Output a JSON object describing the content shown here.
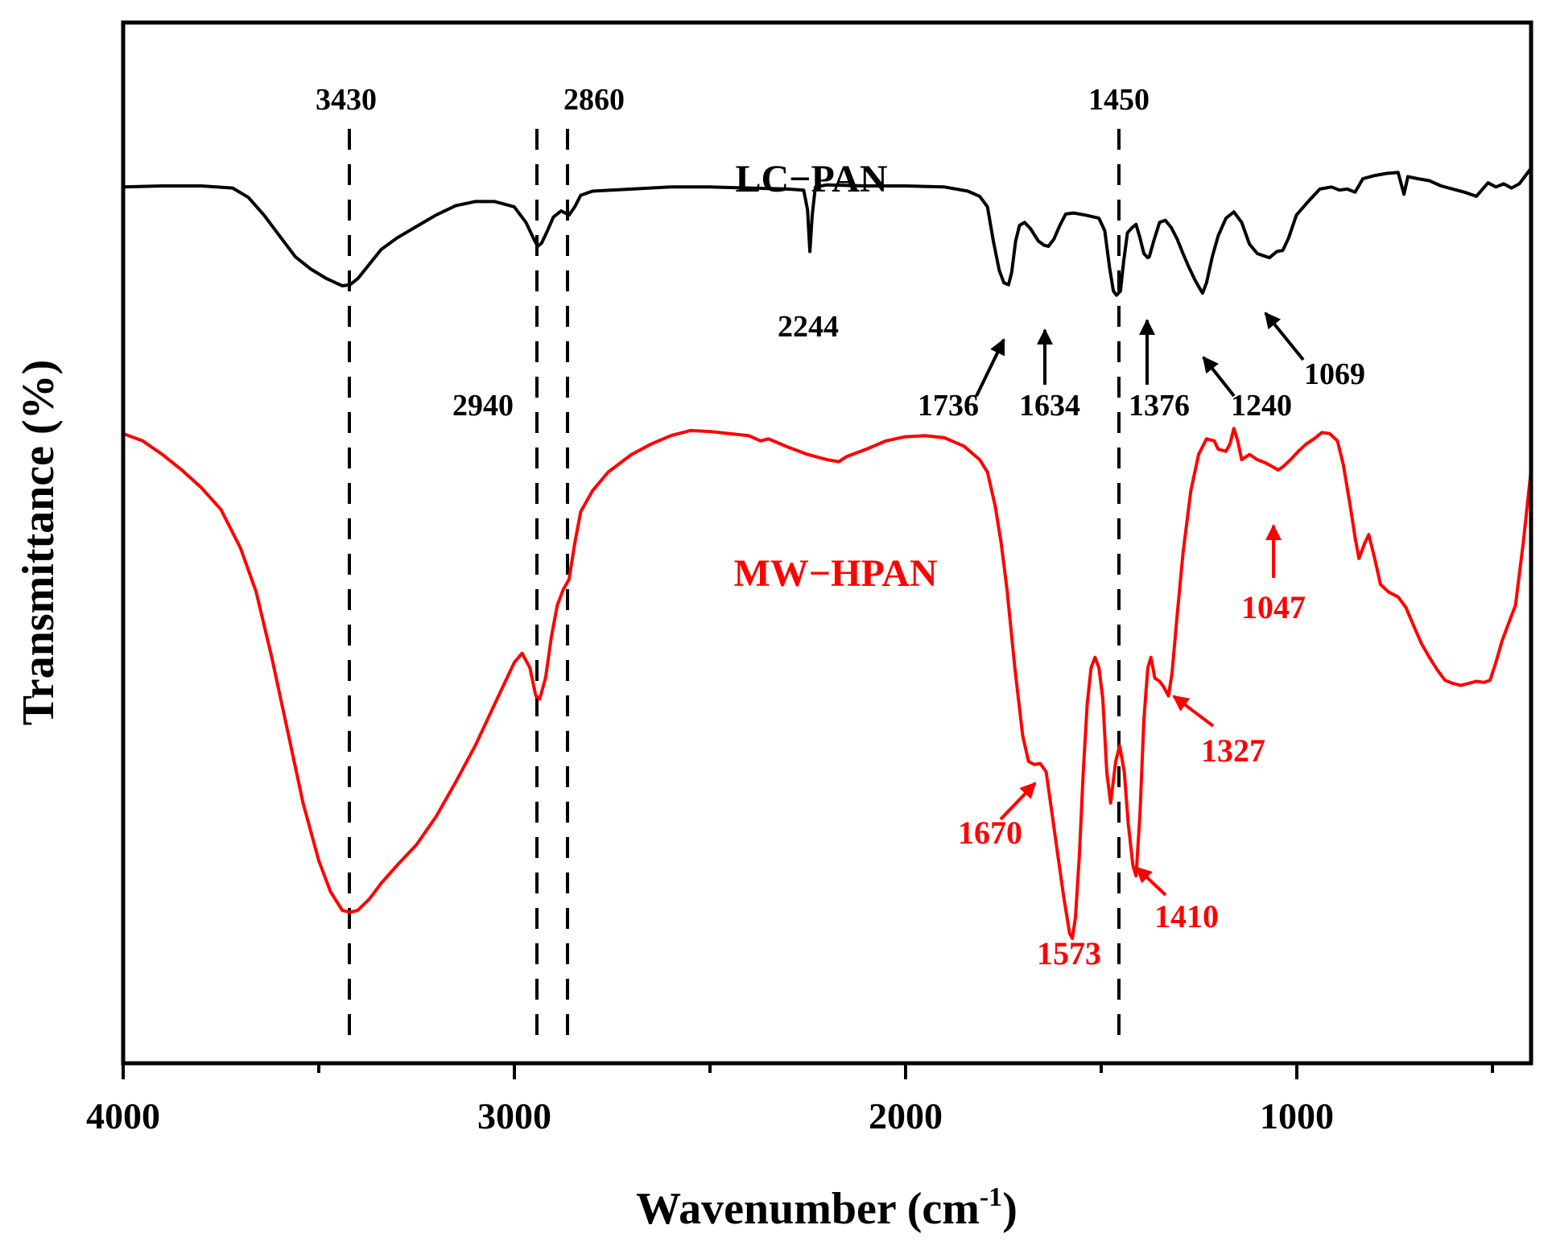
{
  "chart_data": {
    "type": "line",
    "title": "",
    "xlabel": "Wavenumber (cm",
    "xlabel_sup": "-1",
    "xlabel_close": ")",
    "ylabel": "Transmittance (%)",
    "xlim": [
      4000,
      400
    ],
    "ylim": [
      0,
      100
    ],
    "xticks": [
      4000,
      3000,
      2000,
      1000
    ],
    "xticks_minor": [
      3500,
      2500,
      1500,
      500
    ],
    "colors": {
      "axis": "#000000",
      "lc": "#000000",
      "mw": "#ff0000"
    },
    "reference_lines": [
      {
        "x": 3430,
        "label": "3430"
      },
      {
        "x": 2940,
        "label": ""
      },
      {
        "x": 2860,
        "label": "2860"
      },
      {
        "x": 1450,
        "label": "1450"
      }
    ],
    "series": [
      {
        "name": "LC−PAN",
        "color": "#000000",
        "points": [
          [
            4000,
            84.2
          ],
          [
            3900,
            84.3
          ],
          [
            3800,
            84.3
          ],
          [
            3720,
            84.1
          ],
          [
            3680,
            83.2
          ],
          [
            3640,
            81.5
          ],
          [
            3600,
            79.5
          ],
          [
            3560,
            77.5
          ],
          [
            3520,
            76.3
          ],
          [
            3480,
            75.4
          ],
          [
            3440,
            74.7
          ],
          [
            3420,
            74.8
          ],
          [
            3400,
            75.4
          ],
          [
            3370,
            76.8
          ],
          [
            3340,
            78.2
          ],
          [
            3300,
            79.3
          ],
          [
            3250,
            80.4
          ],
          [
            3200,
            81.5
          ],
          [
            3150,
            82.4
          ],
          [
            3100,
            82.8
          ],
          [
            3050,
            82.8
          ],
          [
            3000,
            82.3
          ],
          [
            2970,
            80.8
          ],
          [
            2950,
            79.2
          ],
          [
            2940,
            78.5
          ],
          [
            2930,
            78.8
          ],
          [
            2915,
            80.0
          ],
          [
            2900,
            81.3
          ],
          [
            2880,
            81.9
          ],
          [
            2860,
            81.5
          ],
          [
            2845,
            82.3
          ],
          [
            2830,
            83.4
          ],
          [
            2800,
            83.8
          ],
          [
            2700,
            84.0
          ],
          [
            2600,
            84.2
          ],
          [
            2500,
            84.2
          ],
          [
            2400,
            84.1
          ],
          [
            2300,
            84.0
          ],
          [
            2260,
            83.9
          ],
          [
            2250,
            82.0
          ],
          [
            2244,
            78.0
          ],
          [
            2238,
            81.5
          ],
          [
            2230,
            84.2
          ],
          [
            2200,
            84.4
          ],
          [
            2100,
            84.3
          ],
          [
            2000,
            84.3
          ],
          [
            1900,
            84.2
          ],
          [
            1840,
            83.8
          ],
          [
            1810,
            83.3
          ],
          [
            1790,
            82.3
          ],
          [
            1775,
            79.0
          ],
          [
            1760,
            76.2
          ],
          [
            1748,
            75.0
          ],
          [
            1736,
            74.8
          ],
          [
            1728,
            76.0
          ],
          [
            1718,
            79.0
          ],
          [
            1708,
            80.5
          ],
          [
            1695,
            80.8
          ],
          [
            1680,
            80.2
          ],
          [
            1660,
            79.0
          ],
          [
            1645,
            78.6
          ],
          [
            1634,
            78.5
          ],
          [
            1620,
            79.2
          ],
          [
            1605,
            80.5
          ],
          [
            1590,
            81.6
          ],
          [
            1570,
            81.7
          ],
          [
            1540,
            81.5
          ],
          [
            1505,
            81.2
          ],
          [
            1490,
            80.0
          ],
          [
            1478,
            76.5
          ],
          [
            1468,
            74.2
          ],
          [
            1460,
            73.8
          ],
          [
            1450,
            74.2
          ],
          [
            1442,
            77.0
          ],
          [
            1432,
            79.8
          ],
          [
            1420,
            80.3
          ],
          [
            1410,
            80.6
          ],
          [
            1400,
            79.3
          ],
          [
            1390,
            77.8
          ],
          [
            1380,
            77.4
          ],
          [
            1376,
            77.5
          ],
          [
            1365,
            79.0
          ],
          [
            1350,
            80.8
          ],
          [
            1335,
            81.0
          ],
          [
            1320,
            80.3
          ],
          [
            1305,
            79.2
          ],
          [
            1290,
            77.8
          ],
          [
            1275,
            76.5
          ],
          [
            1260,
            75.3
          ],
          [
            1248,
            74.5
          ],
          [
            1240,
            74.0
          ],
          [
            1230,
            75.0
          ],
          [
            1215,
            77.5
          ],
          [
            1200,
            79.5
          ],
          [
            1180,
            81.2
          ],
          [
            1160,
            81.8
          ],
          [
            1140,
            80.8
          ],
          [
            1120,
            78.7
          ],
          [
            1100,
            77.8
          ],
          [
            1085,
            77.6
          ],
          [
            1069,
            77.4
          ],
          [
            1050,
            78.0
          ],
          [
            1035,
            78.1
          ],
          [
            1020,
            79.3
          ],
          [
            1000,
            81.5
          ],
          [
            970,
            82.8
          ],
          [
            940,
            84.0
          ],
          [
            910,
            84.2
          ],
          [
            890,
            83.9
          ],
          [
            870,
            84.0
          ],
          [
            850,
            83.7
          ],
          [
            830,
            85.0
          ],
          [
            800,
            85.3
          ],
          [
            770,
            85.5
          ],
          [
            740,
            85.6
          ],
          [
            725,
            83.5
          ],
          [
            715,
            85.2
          ],
          [
            690,
            85.0
          ],
          [
            660,
            84.8
          ],
          [
            630,
            84.3
          ],
          [
            600,
            84.0
          ],
          [
            570,
            83.7
          ],
          [
            540,
            83.3
          ],
          [
            510,
            84.6
          ],
          [
            490,
            84.2
          ],
          [
            470,
            84.5
          ],
          [
            450,
            84.1
          ],
          [
            430,
            84.5
          ],
          [
            410,
            85.5
          ],
          [
            400,
            86.0
          ]
        ]
      },
      {
        "name": "MW−HPAN",
        "color": "#ff0000",
        "points": [
          [
            4000,
            60.5
          ],
          [
            3950,
            59.8
          ],
          [
            3900,
            58.5
          ],
          [
            3850,
            57.0
          ],
          [
            3800,
            55.3
          ],
          [
            3750,
            53.2
          ],
          [
            3700,
            49.5
          ],
          [
            3660,
            45.3
          ],
          [
            3620,
            39.0
          ],
          [
            3580,
            32.0
          ],
          [
            3540,
            25.0
          ],
          [
            3500,
            19.5
          ],
          [
            3470,
            16.5
          ],
          [
            3440,
            14.7
          ],
          [
            3420,
            14.5
          ],
          [
            3400,
            14.7
          ],
          [
            3370,
            15.8
          ],
          [
            3340,
            17.3
          ],
          [
            3300,
            19.0
          ],
          [
            3250,
            21.0
          ],
          [
            3200,
            23.7
          ],
          [
            3150,
            27.0
          ],
          [
            3100,
            30.5
          ],
          [
            3050,
            34.5
          ],
          [
            3000,
            38.5
          ],
          [
            2980,
            39.4
          ],
          [
            2960,
            38.0
          ],
          [
            2945,
            35.3
          ],
          [
            2935,
            35.0
          ],
          [
            2920,
            37.0
          ],
          [
            2905,
            41.0
          ],
          [
            2890,
            44.0
          ],
          [
            2875,
            45.5
          ],
          [
            2860,
            46.5
          ],
          [
            2845,
            50.0
          ],
          [
            2830,
            53.0
          ],
          [
            2800,
            55.0
          ],
          [
            2760,
            56.8
          ],
          [
            2700,
            58.5
          ],
          [
            2650,
            59.5
          ],
          [
            2600,
            60.3
          ],
          [
            2550,
            60.8
          ],
          [
            2500,
            60.7
          ],
          [
            2450,
            60.5
          ],
          [
            2400,
            60.3
          ],
          [
            2370,
            59.8
          ],
          [
            2350,
            60.0
          ],
          [
            2300,
            59.2
          ],
          [
            2250,
            58.5
          ],
          [
            2200,
            58.0
          ],
          [
            2170,
            57.8
          ],
          [
            2150,
            58.3
          ],
          [
            2100,
            59.0
          ],
          [
            2050,
            59.8
          ],
          [
            2000,
            60.2
          ],
          [
            1950,
            60.3
          ],
          [
            1900,
            60.1
          ],
          [
            1850,
            59.3
          ],
          [
            1810,
            58.0
          ],
          [
            1790,
            56.8
          ],
          [
            1770,
            53.5
          ],
          [
            1755,
            50.0
          ],
          [
            1740,
            45.5
          ],
          [
            1720,
            38.0
          ],
          [
            1700,
            31.5
          ],
          [
            1685,
            29.0
          ],
          [
            1670,
            28.7
          ],
          [
            1655,
            28.8
          ],
          [
            1640,
            28.0
          ],
          [
            1625,
            24.0
          ],
          [
            1610,
            20.0
          ],
          [
            1595,
            16.0
          ],
          [
            1580,
            12.5
          ],
          [
            1573,
            12.0
          ],
          [
            1565,
            14.0
          ],
          [
            1555,
            20.0
          ],
          [
            1545,
            28.0
          ],
          [
            1535,
            34.5
          ],
          [
            1525,
            38.0
          ],
          [
            1515,
            39.0
          ],
          [
            1505,
            38.0
          ],
          [
            1495,
            35.0
          ],
          [
            1485,
            28.0
          ],
          [
            1475,
            25.0
          ],
          [
            1462,
            29.0
          ],
          [
            1452,
            30.5
          ],
          [
            1440,
            28.0
          ],
          [
            1430,
            23.0
          ],
          [
            1418,
            19.0
          ],
          [
            1410,
            18.0
          ],
          [
            1400,
            24.0
          ],
          [
            1390,
            33.0
          ],
          [
            1380,
            38.0
          ],
          [
            1372,
            39.0
          ],
          [
            1362,
            37.0
          ],
          [
            1350,
            36.7
          ],
          [
            1340,
            36.2
          ],
          [
            1327,
            35.3
          ],
          [
            1318,
            37.5
          ],
          [
            1305,
            43.0
          ],
          [
            1290,
            49.0
          ],
          [
            1270,
            55.0
          ],
          [
            1250,
            58.5
          ],
          [
            1230,
            60.0
          ],
          [
            1210,
            59.8
          ],
          [
            1200,
            59.0
          ],
          [
            1180,
            58.8
          ],
          [
            1170,
            59.5
          ],
          [
            1160,
            61.0
          ],
          [
            1150,
            59.8
          ],
          [
            1140,
            58.0
          ],
          [
            1120,
            58.5
          ],
          [
            1100,
            58.0
          ],
          [
            1080,
            57.7
          ],
          [
            1060,
            57.3
          ],
          [
            1047,
            57.0
          ],
          [
            1035,
            57.3
          ],
          [
            1015,
            58.0
          ],
          [
            995,
            58.8
          ],
          [
            975,
            59.5
          ],
          [
            955,
            60.0
          ],
          [
            935,
            60.6
          ],
          [
            915,
            60.5
          ],
          [
            895,
            59.8
          ],
          [
            880,
            57.5
          ],
          [
            860,
            53.0
          ],
          [
            850,
            50.5
          ],
          [
            840,
            48.5
          ],
          [
            825,
            50.0
          ],
          [
            815,
            50.8
          ],
          [
            800,
            48.5
          ],
          [
            785,
            46.0
          ],
          [
            765,
            45.3
          ],
          [
            740,
            44.8
          ],
          [
            720,
            43.8
          ],
          [
            700,
            42.0
          ],
          [
            680,
            40.3
          ],
          [
            660,
            39.0
          ],
          [
            640,
            37.8
          ],
          [
            620,
            36.8
          ],
          [
            600,
            36.5
          ],
          [
            580,
            36.3
          ],
          [
            560,
            36.5
          ],
          [
            540,
            36.7
          ],
          [
            520,
            36.6
          ],
          [
            505,
            36.8
          ],
          [
            490,
            38.5
          ],
          [
            475,
            40.5
          ],
          [
            460,
            42.0
          ],
          [
            440,
            44.0
          ],
          [
            420,
            50.0
          ],
          [
            400,
            57.0
          ]
        ]
      }
    ],
    "annotations": [
      {
        "label": "2940",
        "series": 0,
        "type": "text"
      },
      {
        "label": "2244",
        "series": 0,
        "type": "text"
      },
      {
        "label": "1736",
        "series": 0,
        "type": "arrow"
      },
      {
        "label": "1634",
        "series": 0,
        "type": "arrow"
      },
      {
        "label": "1376",
        "series": 0,
        "type": "arrow"
      },
      {
        "label": "1240",
        "series": 0,
        "type": "arrow"
      },
      {
        "label": "1069",
        "series": 0,
        "type": "arrow"
      },
      {
        "label": "1670",
        "series": 1,
        "type": "arrow"
      },
      {
        "label": "1573",
        "series": 1,
        "type": "text"
      },
      {
        "label": "1410",
        "series": 1,
        "type": "arrow"
      },
      {
        "label": "1327",
        "series": 1,
        "type": "arrow"
      },
      {
        "label": "1047",
        "series": 1,
        "type": "arrow"
      }
    ]
  }
}
